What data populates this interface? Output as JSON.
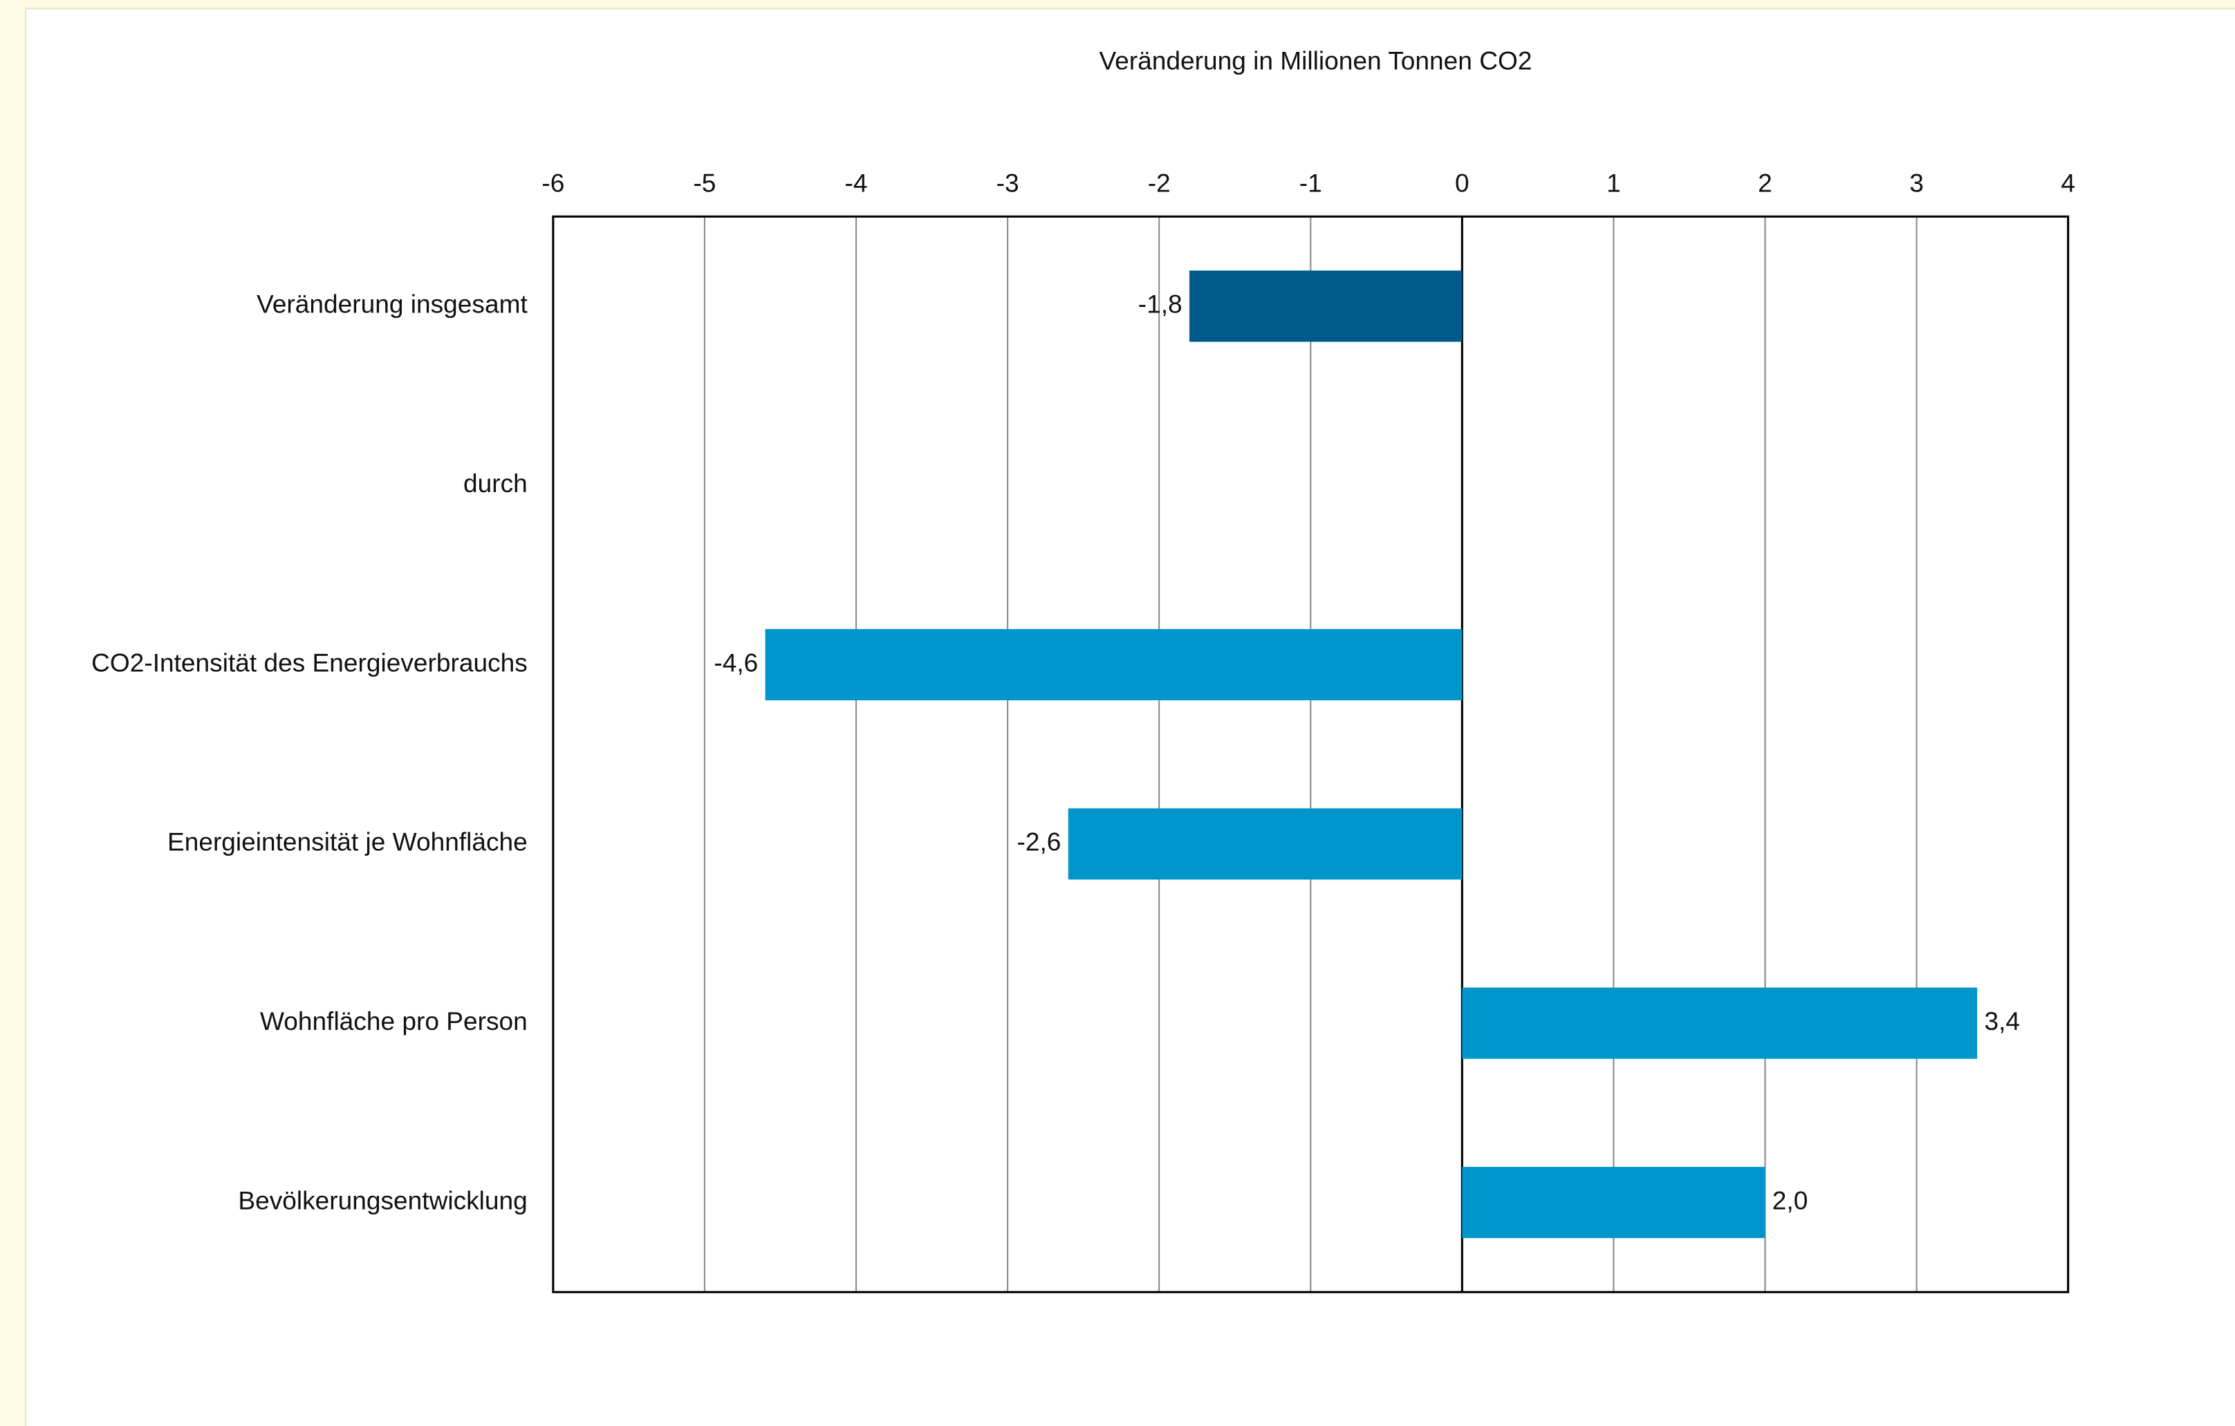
{
  "chart_data": {
    "type": "hbar",
    "x_label": "Veränderung in Millionen Tonnen CO2",
    "categories": [
      "Veränderung insgesamt",
      "durch",
      "CO2-Intensität des Energieverbrauchs",
      "Energieintensität je Wohnfläche",
      "Wohnfläche pro Person",
      "Bevölkerungsentwicklung"
    ],
    "values": [
      -1.8,
      null,
      -4.6,
      -2.6,
      3.4,
      2.0
    ],
    "value_labels": [
      "-1,8",
      null,
      "-4,6",
      "-2,6",
      "3,4",
      "2,0"
    ],
    "colors": [
      "#005a8c",
      null,
      "#0096cc",
      "#0096cc",
      "#0096cc",
      "#0096cc"
    ],
    "xlim": [
      -6,
      4
    ],
    "xticks": [
      -6,
      -5,
      -4,
      -3,
      -2,
      -1,
      0,
      1,
      2,
      3,
      4
    ],
    "grid": true
  }
}
